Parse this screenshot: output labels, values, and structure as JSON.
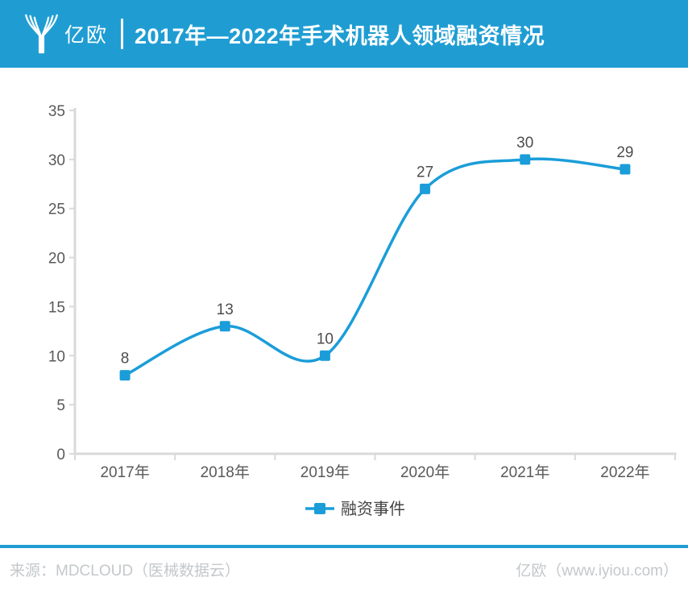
{
  "header": {
    "brand": "亿欧",
    "title": "2017年—2022年手术机器人领域融资情况"
  },
  "colors": {
    "header_bg": "#1F9DD3",
    "line": "#1B9DD9",
    "marker": "#1B9DD9",
    "axis": "#D9D9D9",
    "tick_label": "#595959",
    "value_label": "#4D4D4D",
    "legend_text": "#444444",
    "divider": "#1F9DD3",
    "footer_text": "#C4C8CB"
  },
  "chart_data": {
    "type": "line",
    "title": "2017年—2022年手术机器人领域融资情况",
    "categories": [
      "2017年",
      "2018年",
      "2019年",
      "2020年",
      "2021年",
      "2022年"
    ],
    "series": [
      {
        "name": "融资事件",
        "values": [
          8,
          13,
          10,
          27,
          30,
          29
        ]
      }
    ],
    "xlabel": "",
    "ylabel": "",
    "ylim": [
      0,
      35
    ],
    "ytick_step": 5,
    "grid": false,
    "smooth": true,
    "marker": "square",
    "legend_position": "bottom"
  },
  "footer": {
    "source": "来源：MDCLOUD（医械数据云）",
    "credit": "亿欧（www.iyiou.com）"
  }
}
